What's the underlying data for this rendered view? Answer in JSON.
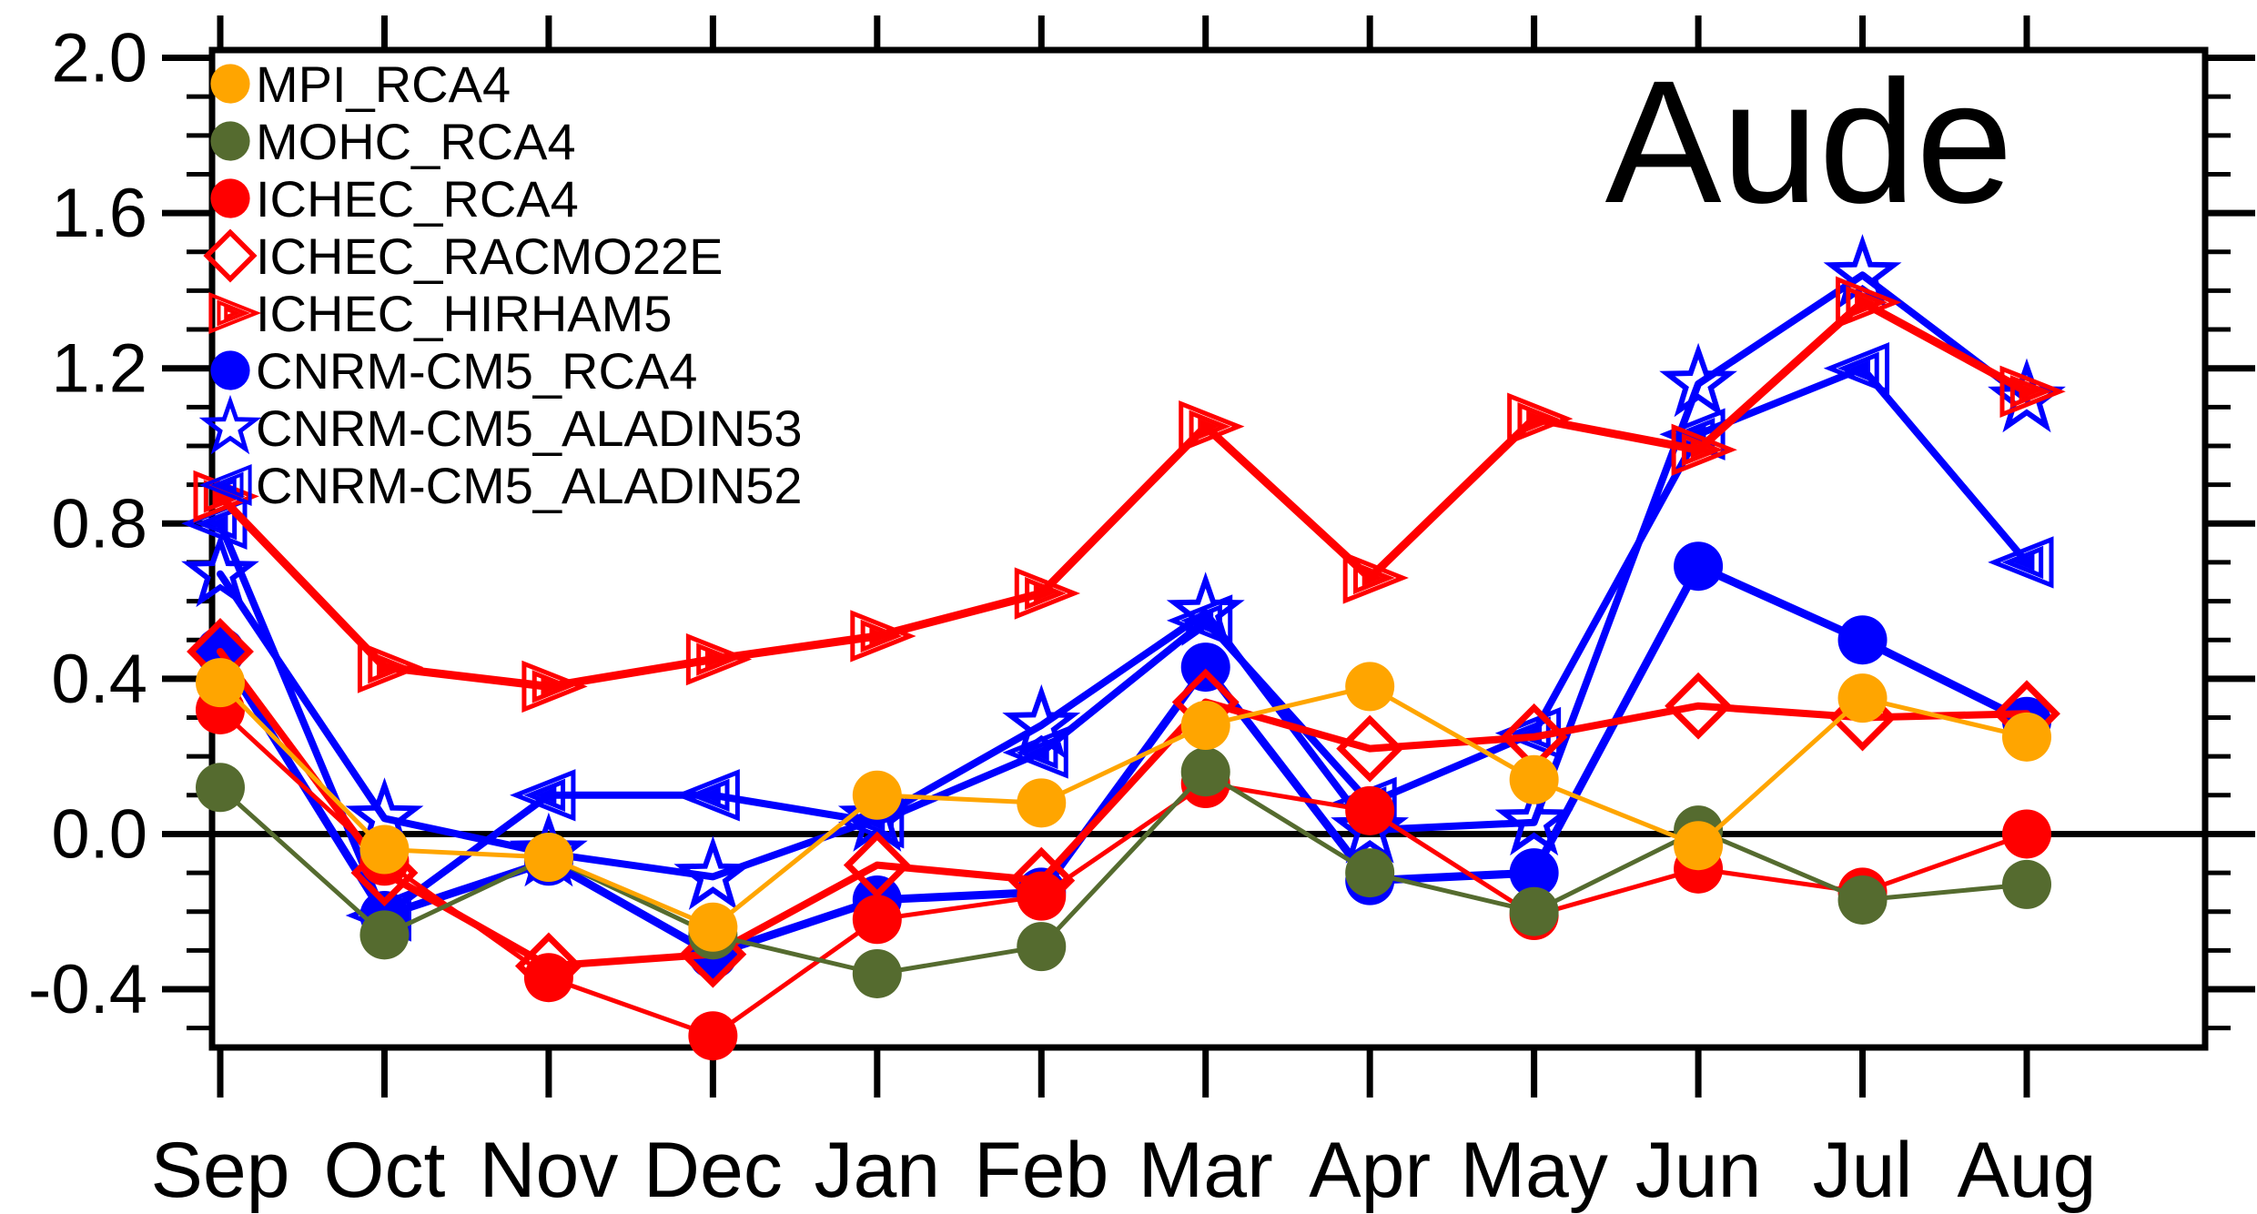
{
  "title": "Aude",
  "chart_data": {
    "type": "line",
    "title": "Aude",
    "xlabel": "",
    "ylabel": "",
    "grid": false,
    "legend_position": "top-left",
    "zero_line": true,
    "categories": [
      "Sep",
      "Oct",
      "Nov",
      "Dec",
      "Jan",
      "Feb",
      "Mar",
      "Apr",
      "May",
      "Jun",
      "Jul",
      "Aug"
    ],
    "y_axis": {
      "tick_labels": [
        "2.0",
        "1.6",
        "1.2",
        "0.8",
        "0.4",
        "0.0",
        "-0.4"
      ],
      "major_values": [
        2.0,
        1.6,
        1.2,
        0.8,
        0.4,
        0.0,
        -0.4
      ],
      "minor_step": 0.1,
      "ylim": [
        -0.55,
        2.02
      ]
    },
    "series": [
      {
        "name": "MPI_RCA4",
        "color": "#FFA500",
        "marker": "filled_circle",
        "line_width": 5,
        "values": [
          0.39,
          -0.04,
          -0.06,
          -0.24,
          0.1,
          0.08,
          0.28,
          0.38,
          0.14,
          -0.03,
          0.35,
          0.25
        ]
      },
      {
        "name": "MOHC_RCA4",
        "color": "#556B2F",
        "marker": "filled_circle",
        "line_width": 5,
        "values": [
          0.12,
          -0.26,
          -0.06,
          -0.26,
          -0.36,
          -0.29,
          0.16,
          -0.1,
          -0.2,
          0.01,
          -0.17,
          -0.13
        ]
      },
      {
        "name": "ICHEC_RCA4",
        "color": "#FF0000",
        "marker": "filled_circle",
        "line_width": 5,
        "values": [
          0.32,
          -0.07,
          -0.37,
          -0.52,
          -0.22,
          -0.16,
          0.13,
          0.06,
          -0.21,
          -0.09,
          -0.15,
          0.0
        ]
      },
      {
        "name": "ICHEC_RACMO22E",
        "color": "#FF0000",
        "marker": "open_diamond",
        "line_width": 8,
        "values": [
          0.47,
          -0.1,
          -0.34,
          -0.31,
          -0.08,
          -0.12,
          0.34,
          0.22,
          0.25,
          0.33,
          0.3,
          0.31
        ]
      },
      {
        "name": "ICHEC_HIRHAM5",
        "color": "#FF0000",
        "marker": "nested_triangle_right",
        "line_width": 9,
        "values": [
          0.87,
          0.43,
          0.38,
          0.45,
          0.51,
          0.62,
          1.05,
          0.66,
          1.07,
          0.99,
          1.37,
          1.14
        ]
      },
      {
        "name": "CNRM-CM5_RCA4",
        "color": "#0000FF",
        "marker": "filled_circle",
        "line_width": 9,
        "values": [
          0.47,
          -0.21,
          -0.07,
          -0.31,
          -0.17,
          -0.15,
          0.43,
          -0.12,
          -0.1,
          0.69,
          0.5,
          0.29
        ]
      },
      {
        "name": "CNRM-CM5_ALADIN53",
        "color": "#0000FF",
        "marker": "open_star",
        "line_width": 8,
        "values": [
          0.67,
          0.04,
          -0.05,
          -0.11,
          0.04,
          0.28,
          0.57,
          0.01,
          0.03,
          1.16,
          1.44,
          1.12
        ]
      },
      {
        "name": "CNRM-CM5_ALADIN52",
        "color": "#0000FF",
        "marker": "nested_triangle_left",
        "line_width": 8,
        "values": [
          0.8,
          -0.21,
          0.1,
          0.1,
          0.03,
          0.21,
          0.55,
          0.08,
          0.26,
          1.03,
          1.2,
          0.7
        ]
      }
    ]
  }
}
